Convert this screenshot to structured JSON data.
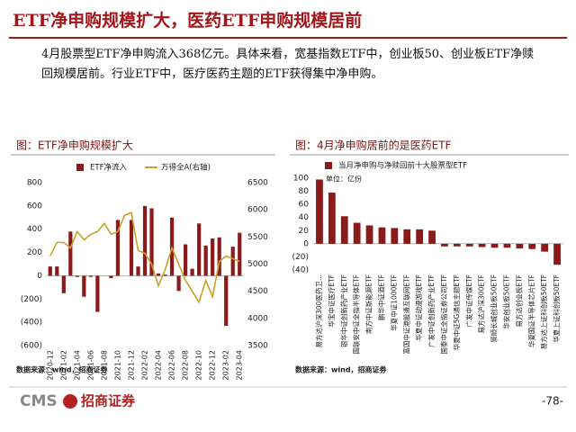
{
  "title": "ETF净申购规模扩大，医药ETF申购规模居前",
  "paragraph": "4月股票型ETF净申购流入368亿元。具体来看，宽基指数ETF中，创业板50、创业板ETF净赎回规模居前。行业ETF中，医疗医药主题的ETF获得集中净申购。",
  "footer": {
    "logo": "CMS",
    "company": "招商证券",
    "page": "-78-"
  },
  "chart_data": [
    {
      "type": "bar",
      "title": "图：ETF净申购规模扩大",
      "source": "数据来源：wind，招商证券",
      "legend": "top",
      "categories": [
        "2020-12",
        null,
        "2021-02",
        null,
        "2021-04",
        null,
        "2021-06",
        null,
        "2021-08",
        null,
        "2021-10",
        null,
        "2021-12",
        null,
        "2022-02",
        null,
        "2022-04",
        null,
        "2022-06",
        null,
        "2022-08",
        null,
        "2022-10",
        null,
        "2022-12",
        null,
        "2023-02",
        null,
        "2023-04"
      ],
      "series": [
        {
          "name": "ETF净流入",
          "type": "bar",
          "color": "#8b1a1a",
          "values": [
            80,
            80,
            -150,
            380,
            -10,
            -180,
            -10,
            -310,
            0,
            -20,
            480,
            0,
            480,
            80,
            600,
            580,
            20,
            10,
            500,
            -130,
            270,
            60,
            450,
            260,
            320,
            330,
            -430,
            250,
            370
          ]
        },
        {
          "name": "万得全A(右轴)",
          "type": "line",
          "axis": "y2",
          "color": "#c9a227",
          "values": [
            5150,
            5400,
            5400,
            5300,
            5600,
            5450,
            5550,
            5600,
            5750,
            5550,
            5600,
            5900,
            5950,
            5250,
            5200,
            5000,
            4600,
            4900,
            5300,
            5000,
            4700,
            4500,
            4300,
            4700,
            4400,
            5050,
            5150,
            5100,
            5050
          ]
        }
      ],
      "ylim": [
        -600,
        800
      ],
      "yticks": [
        {
          "value": -600,
          "label": "(600)"
        },
        {
          "value": -400,
          "label": "(400)"
        },
        {
          "value": -200,
          "label": "(200)"
        },
        0,
        200,
        400,
        600,
        800
      ],
      "y2lim": [
        3500,
        6500
      ],
      "y2ticks": [
        3500,
        4000,
        4500,
        5000,
        5500,
        6000,
        6500
      ]
    },
    {
      "type": "bar",
      "title": "图：4月净申购居前的是医药ETF",
      "source": "数据来源：wind，招商证券",
      "legend": "upper left",
      "unit_label": "单位：亿份",
      "categories": [
        "易方达沪深300医药卫...",
        "华宝中证医疗ETF",
        "银华中证创新药产业ETF",
        "国联安中证全指半导体ETF",
        "南方中证新能源ETF",
        "鹏华中证酒ETF",
        "华夏中证1000ETF",
        "富国中证港股通互联网ETF",
        "华夏中证动漫游戏ETF",
        "广发中证创新药产业ETF",
        "国泰中证全指证券公司ETF",
        "华夏中证5G通信主题ETF",
        "广发中证传媒ETF",
        "易方达沪深300ETF",
        "景顺长城创业板50ETF",
        "华安创业板50ETF",
        "易方达创业板ETF",
        "华夏国证半导体芯片ETF",
        "易方达上证科创板50ETF",
        "华夏上证科创板50ETF"
      ],
      "series": [
        {
          "name": "当月净申购与净赎回前十大股票型ETF",
          "type": "bar",
          "color": "#8b1a1a",
          "values": [
            98,
            78,
            42,
            32,
            28,
            25,
            24,
            22,
            22,
            20,
            -4,
            -4,
            -4,
            -5,
            -6,
            -6,
            -7,
            -8,
            -12,
            -32
          ]
        }
      ],
      "ylim": [
        -40,
        100
      ],
      "yticks": [
        {
          "value": -40,
          "label": "(40)"
        },
        {
          "value": -20,
          "label": "(20)"
        },
        0,
        20,
        40,
        60,
        80,
        100
      ]
    }
  ]
}
